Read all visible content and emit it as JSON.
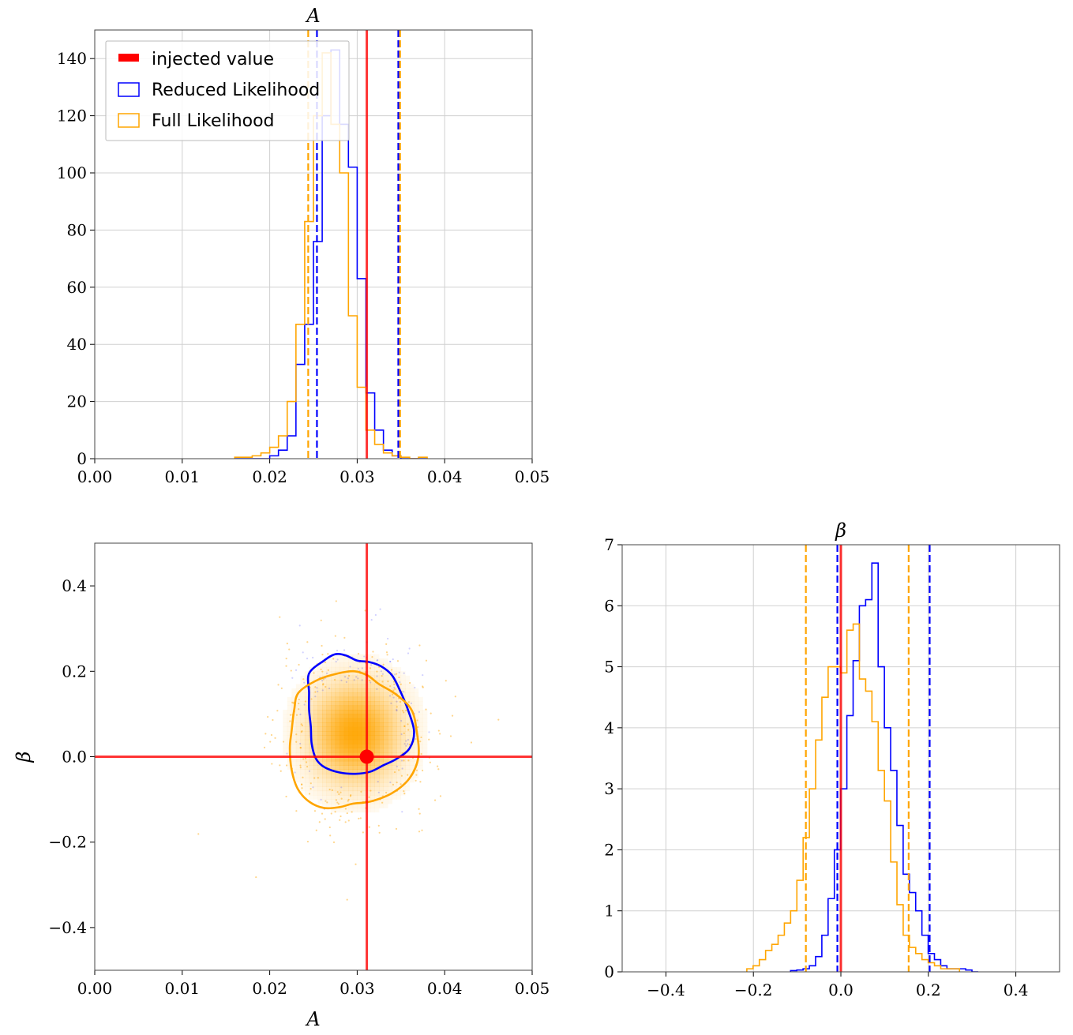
{
  "colors": {
    "reduced": "#0000ff",
    "full": "#ffa500",
    "injected": "#ff0000",
    "grid": "#d0d0d0"
  },
  "legend": {
    "items": [
      {
        "label": "injected value",
        "kind": "fill",
        "color_key": "injected"
      },
      {
        "label": "Reduced Likelihood",
        "kind": "box",
        "color_key": "reduced"
      },
      {
        "label": "Full Likelihood",
        "kind": "box",
        "color_key": "full"
      }
    ],
    "placement": "upper-left"
  },
  "chart_data": [
    {
      "id": "hist_A",
      "type": "histogram",
      "title": "A",
      "xlim": [
        0.0,
        0.05
      ],
      "ylim": [
        0,
        150
      ],
      "xticks": [
        0.0,
        0.01,
        0.02,
        0.03,
        0.04,
        0.05
      ],
      "xtick_labels": [
        "0.00",
        "0.01",
        "0.02",
        "0.03",
        "0.04",
        "0.05"
      ],
      "yticks": [
        0,
        20,
        40,
        60,
        80,
        100,
        120,
        140
      ],
      "ytick_labels": [
        "0",
        "20",
        "40",
        "60",
        "80",
        "100",
        "120",
        "140"
      ],
      "grid": true,
      "bin_width": 0.001,
      "series": [
        {
          "name": "Reduced Likelihood",
          "color_key": "reduced",
          "bin_start": 0.016,
          "values": [
            0,
            0,
            0,
            0,
            1,
            3,
            8,
            33,
            47,
            76,
            120,
            143,
            117,
            102,
            63,
            23,
            10,
            3,
            1,
            0,
            0,
            0
          ]
        },
        {
          "name": "Full Likelihood",
          "color_key": "full",
          "bin_start": 0.016,
          "values": [
            0.5,
            0.5,
            1,
            2,
            4,
            8,
            20,
            47,
            83,
            120,
            142,
            117,
            100,
            50,
            25,
            10,
            5,
            2,
            1,
            0.5,
            0,
            0.5
          ]
        }
      ],
      "vlines": [
        {
          "x": 0.0311,
          "color_key": "injected",
          "style": "solid"
        },
        {
          "x": 0.0254,
          "color_key": "reduced",
          "style": "dashed"
        },
        {
          "x": 0.0347,
          "color_key": "reduced",
          "style": "dashed"
        },
        {
          "x": 0.0244,
          "color_key": "full",
          "style": "dashed"
        },
        {
          "x": 0.0349,
          "color_key": "full",
          "style": "dashed"
        }
      ]
    },
    {
      "id": "joint_A_beta",
      "type": "contour",
      "xlabel": "A",
      "ylabel": "β",
      "xlim": [
        0.0,
        0.05
      ],
      "ylim": [
        -0.5,
        0.5
      ],
      "xticks": [
        0.0,
        0.01,
        0.02,
        0.03,
        0.04,
        0.05
      ],
      "xtick_labels": [
        "0.00",
        "0.01",
        "0.02",
        "0.03",
        "0.04",
        "0.05"
      ],
      "yticks": [
        -0.4,
        -0.2,
        0.0,
        0.2,
        0.4
      ],
      "ytick_labels": [
        "−0.4",
        "−0.2",
        "0.0",
        "0.2",
        "0.4"
      ],
      "grid": false,
      "injected": {
        "x": 0.0311,
        "y": 0.0
      },
      "density_center": {
        "x": 0.0295,
        "y": 0.05
      },
      "contours": [
        {
          "name": "Reduced Likelihood",
          "color_key": "reduced",
          "points": [
            [
              0.0245,
              0.195
            ],
            [
              0.0262,
              0.225
            ],
            [
              0.0275,
              0.24
            ],
            [
              0.0287,
              0.237
            ],
            [
              0.03,
              0.225
            ],
            [
              0.0313,
              0.222
            ],
            [
              0.0327,
              0.212
            ],
            [
              0.034,
              0.19
            ],
            [
              0.035,
              0.15
            ],
            [
              0.0358,
              0.11
            ],
            [
              0.0365,
              0.06
            ],
            [
              0.036,
              0.02
            ],
            [
              0.0345,
              -0.005
            ],
            [
              0.033,
              -0.02
            ],
            [
              0.0315,
              -0.035
            ],
            [
              0.0298,
              -0.04
            ],
            [
              0.028,
              -0.037
            ],
            [
              0.0263,
              -0.025
            ],
            [
              0.0253,
              -0.005
            ],
            [
              0.0248,
              0.03
            ],
            [
              0.0247,
              0.07
            ],
            [
              0.0245,
              0.11
            ],
            [
              0.0245,
              0.15
            ]
          ]
        },
        {
          "name": "Full Likelihood",
          "color_key": "full",
          "points": [
            [
              0.0233,
              0.15
            ],
            [
              0.0255,
              0.18
            ],
            [
              0.0278,
              0.195
            ],
            [
              0.0297,
              0.2
            ],
            [
              0.0312,
              0.19
            ],
            [
              0.0325,
              0.17
            ],
            [
              0.0345,
              0.145
            ],
            [
              0.0362,
              0.11
            ],
            [
              0.0368,
              0.06
            ],
            [
              0.037,
              0.0
            ],
            [
              0.036,
              -0.05
            ],
            [
              0.034,
              -0.085
            ],
            [
              0.0315,
              -0.105
            ],
            [
              0.0295,
              -0.11
            ],
            [
              0.028,
              -0.118
            ],
            [
              0.0262,
              -0.12
            ],
            [
              0.0245,
              -0.105
            ],
            [
              0.0232,
              -0.075
            ],
            [
              0.0225,
              -0.03
            ],
            [
              0.0223,
              0.02
            ],
            [
              0.0225,
              0.06
            ],
            [
              0.0228,
              0.11
            ]
          ]
        }
      ]
    },
    {
      "id": "hist_beta",
      "type": "histogram",
      "title": "β",
      "xlim": [
        -0.5,
        0.5
      ],
      "ylim": [
        0,
        7
      ],
      "xticks": [
        -0.4,
        -0.2,
        0.0,
        0.2,
        0.4
      ],
      "xtick_labels": [
        "−0.4",
        "−0.2",
        "0.0",
        "0.2",
        "0.4"
      ],
      "yticks": [
        0,
        1,
        2,
        3,
        4,
        5,
        6,
        7
      ],
      "ytick_labels": [
        "0",
        "1",
        "2",
        "3",
        "4",
        "5",
        "6",
        "7"
      ],
      "grid": true,
      "bin_width": 0.0143,
      "series": [
        {
          "name": "Reduced Likelihood",
          "color_key": "reduced",
          "bin_start": -0.115,
          "values": [
            0.02,
            0.03,
            0.05,
            0.1,
            0.25,
            0.6,
            1.2,
            2.0,
            3.0,
            4.2,
            5.1,
            6.0,
            6.1,
            6.7,
            5.0,
            4.0,
            3.3,
            2.4,
            1.6,
            1.3,
            1.0,
            0.6,
            0.3,
            0.2,
            0.1,
            0.05,
            0.05,
            0.05,
            0.03,
            0.0
          ]
        },
        {
          "name": "Full Likelihood",
          "color_key": "full",
          "bin_start": -0.215,
          "values": [
            0.05,
            0.1,
            0.2,
            0.35,
            0.45,
            0.6,
            0.8,
            1.0,
            1.5,
            2.2,
            3.0,
            3.8,
            4.5,
            5.0,
            5.0,
            4.9,
            5.6,
            5.7,
            4.8,
            4.6,
            4.1,
            3.3,
            2.8,
            1.8,
            1.1,
            0.6,
            0.4,
            0.3,
            0.2,
            0.15,
            0.1,
            0.05,
            0.05,
            0.05
          ]
        }
      ],
      "vlines": [
        {
          "x": 0.0,
          "color_key": "injected",
          "style": "solid"
        },
        {
          "x": -0.008,
          "color_key": "reduced",
          "style": "dashed"
        },
        {
          "x": 0.203,
          "color_key": "reduced",
          "style": "dashed"
        },
        {
          "x": -0.08,
          "color_key": "full",
          "style": "dashed"
        },
        {
          "x": 0.155,
          "color_key": "full",
          "style": "dashed"
        }
      ]
    }
  ]
}
